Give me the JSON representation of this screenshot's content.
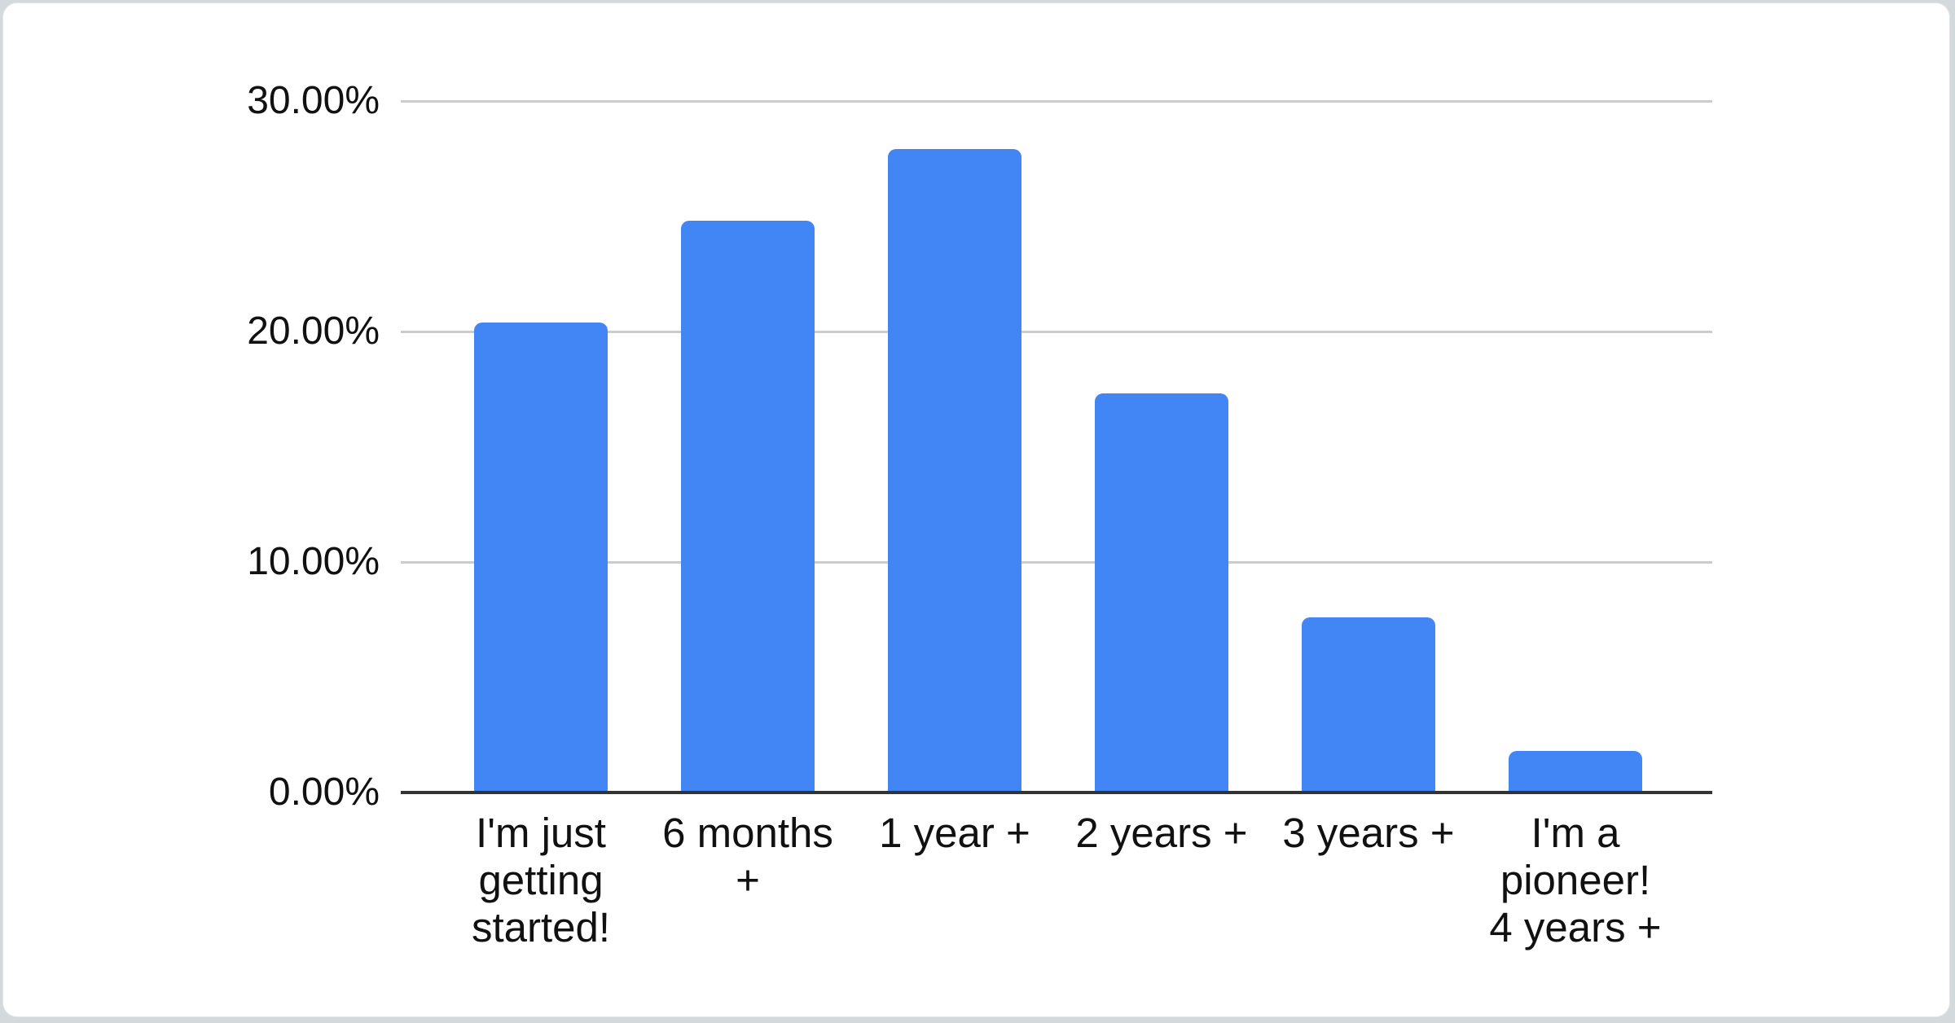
{
  "chart_data": {
    "type": "bar",
    "title": "",
    "xlabel": "",
    "ylabel": "",
    "categories": [
      "I'm just getting started!",
      "6 months +",
      "1 year +",
      "2 years +",
      "3 years +",
      "I'm a pioneer! 4 years +"
    ],
    "tick_lines": [
      "I'm just\ngetting\nstarted!",
      "6 months\n+",
      "1 year +",
      "2 years +",
      "3 years +",
      "I'm a\npioneer!\n4 years +"
    ],
    "values": [
      20.4,
      24.8,
      27.9,
      17.3,
      7.6,
      1.8
    ],
    "unit": "%",
    "ylim": [
      0,
      30
    ],
    "ytick_step": 10,
    "ytick_labels": [
      "0.00%",
      "10.00%",
      "20.00%",
      "30.00%"
    ],
    "grid": true,
    "legend_position": "none",
    "colors": {
      "bar": "#4285f4",
      "gridline": "#cccccc",
      "axis_baseline": "#333333",
      "text": "#111111",
      "card_background": "#ffffff"
    }
  }
}
